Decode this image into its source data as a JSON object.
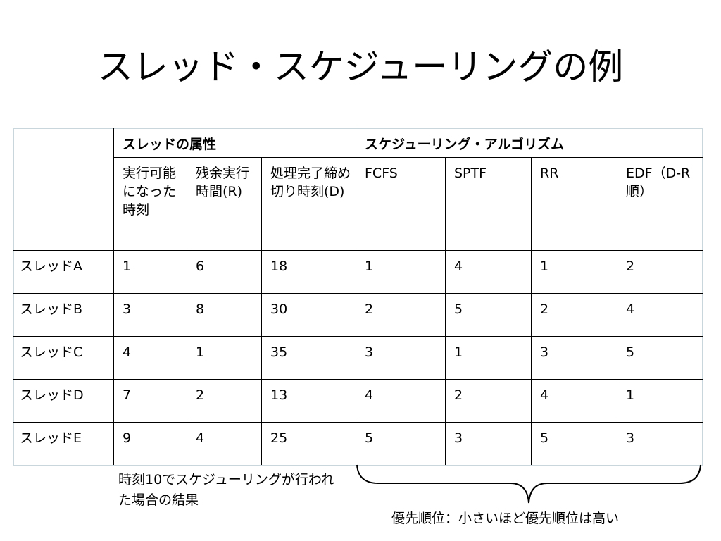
{
  "slide": {
    "title": "スレッド・スケジューリングの例"
  },
  "table": {
    "group_headers": {
      "attributes": "スレッドの属性",
      "algorithms": "スケジューリング・アルゴリズム"
    },
    "sub_headers": {
      "arrival": "実行可能になった時刻",
      "remaining": "残余実行時間(R)",
      "deadline": "処理完了締め切り時刻(D)",
      "fcfs": "FCFS",
      "sptf": "SPTF",
      "rr": "RR",
      "edf": "EDF（D-R順）"
    },
    "rows": [
      {
        "thread": "スレッドA",
        "arrival": "1",
        "remaining": "6",
        "deadline": "18",
        "fcfs": "1",
        "sptf": "4",
        "rr": "1",
        "edf": "2"
      },
      {
        "thread": "スレッドB",
        "arrival": "3",
        "remaining": "8",
        "deadline": "30",
        "fcfs": "2",
        "sptf": "5",
        "rr": "2",
        "edf": "4"
      },
      {
        "thread": "スレッドC",
        "arrival": "4",
        "remaining": "1",
        "deadline": "35",
        "fcfs": "3",
        "sptf": "1",
        "rr": "3",
        "edf": "5"
      },
      {
        "thread": "スレッドD",
        "arrival": "7",
        "remaining": "2",
        "deadline": "13",
        "fcfs": "4",
        "sptf": "2",
        "rr": "4",
        "edf": "1"
      },
      {
        "thread": "スレッドE",
        "arrival": "9",
        "remaining": "4",
        "deadline": "25",
        "fcfs": "5",
        "sptf": "3",
        "rr": "5",
        "edf": "3"
      }
    ]
  },
  "footnote": {
    "note": "時刻10でスケジューリングが行われた場合の結果",
    "priority_caption": "優先順位：小さいほど優先順位は高い"
  }
}
